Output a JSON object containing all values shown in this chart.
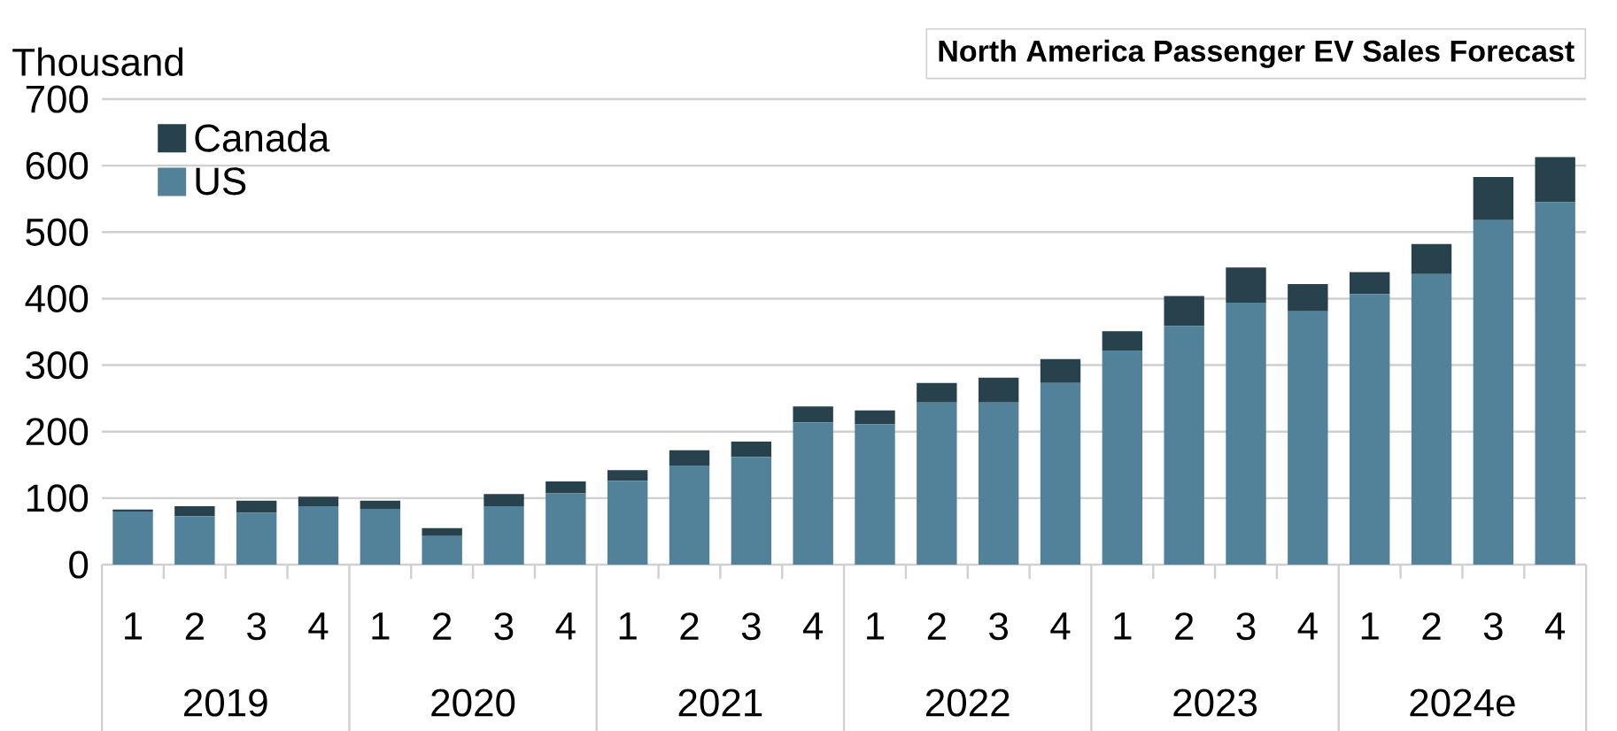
{
  "chart_data": {
    "type": "bar",
    "title": "North America Passenger EV Sales Forecast",
    "ylabel": "Thousand",
    "categories": [
      "1",
      "2",
      "3",
      "4",
      "1",
      "2",
      "3",
      "4",
      "1",
      "2",
      "3",
      "4",
      "1",
      "2",
      "3",
      "4",
      "1",
      "2",
      "3",
      "4",
      "1",
      "2",
      "3",
      "4"
    ],
    "annotations": [
      "2019",
      "2020",
      "2021",
      "2022",
      "2023",
      "2024e"
    ],
    "series": [
      {
        "name": "US",
        "color": "#52829a",
        "values": [
          80,
          73,
          78,
          88,
          84,
          43,
          88,
          107,
          126,
          149,
          162,
          214,
          211,
          244,
          244,
          273,
          322,
          359,
          394,
          381,
          407,
          437,
          518,
          545
        ]
      },
      {
        "name": "Canada",
        "color": "#27424c",
        "values": [
          3,
          15,
          18,
          14,
          12,
          12,
          18,
          18,
          16,
          23,
          23,
          24,
          21,
          29,
          37,
          36,
          29,
          45,
          53,
          41,
          33,
          45,
          65,
          68
        ]
      }
    ],
    "stacked": true,
    "ylim": [
      0,
      700
    ],
    "yticks": [
      0,
      100,
      200,
      300,
      400,
      500,
      600,
      700
    ],
    "grid": "y",
    "legend": "top left"
  }
}
